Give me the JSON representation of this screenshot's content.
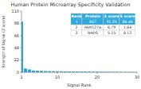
{
  "chart_data": {
    "type": "bar",
    "title": "Human Protein Microarray Specificity Validation",
    "xlabel": "Signal Rank",
    "ylabel": "Strength of Signal (Z score)",
    "color": "#29abe2",
    "x": [
      1,
      2,
      3,
      4,
      5,
      6,
      7,
      8,
      9,
      10,
      11,
      12,
      13,
      14,
      15,
      16,
      17,
      18,
      19,
      20,
      21,
      22,
      23,
      24,
      25,
      26,
      27,
      28,
      29,
      30
    ],
    "values": [
      91.25,
      6.79,
      5.15,
      3.2,
      2.8,
      2.5,
      2.2,
      2.0,
      1.9,
      1.8,
      1.7,
      1.6,
      1.5,
      1.4,
      1.35,
      1.3,
      1.25,
      1.2,
      1.15,
      1.1,
      1.05,
      1.0,
      0.95,
      0.9,
      0.85,
      0.8,
      0.75,
      0.7,
      0.65,
      0.6
    ],
    "xlim": [
      1,
      30
    ],
    "xticks": [
      1,
      10,
      20,
      30
    ],
    "ylim": [
      0,
      110
    ],
    "yticks": [
      0,
      22,
      44,
      66,
      88,
      110
    ],
    "table": {
      "headers": [
        "Rank",
        "Protein",
        "Z score",
        "S score"
      ],
      "rows": [
        [
          "1",
          "RET",
          "91.25",
          "84.46"
        ],
        [
          "2",
          "FAM127A",
          "6.79",
          "1.64"
        ],
        [
          "3",
          "RHDS",
          "5.15",
          "0.13"
        ]
      ]
    }
  }
}
